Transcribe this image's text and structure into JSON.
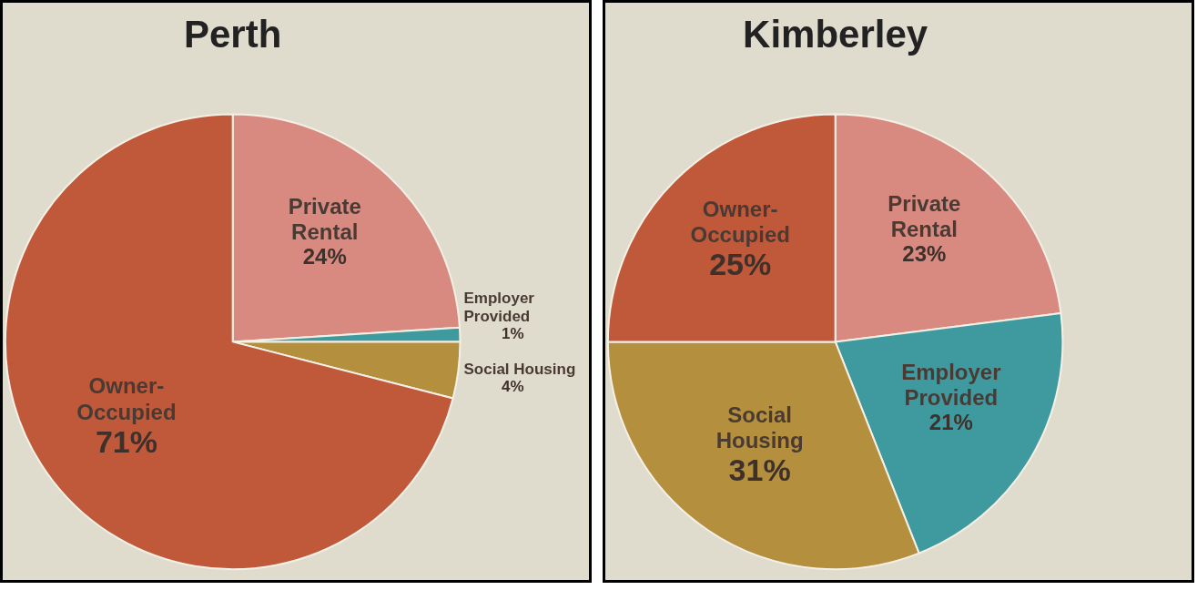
{
  "chart_data": [
    {
      "type": "pie",
      "title": "Perth",
      "categories": [
        "Private Rental",
        "Employer Provided",
        "Social Housing",
        "Owner-Occupied"
      ],
      "values": [
        24,
        1,
        4,
        71
      ],
      "value_labels": [
        "24%",
        "1%",
        "4%",
        "71%"
      ],
      "colors": [
        "#d98a80",
        "#3f9aa0",
        "#b48f3e",
        "#c0583a"
      ]
    },
    {
      "type": "pie",
      "title": "Kimberley",
      "categories": [
        "Private Rental",
        "Employer Provided",
        "Social Housing",
        "Owner-Occupied"
      ],
      "values": [
        23,
        21,
        31,
        25
      ],
      "value_labels": [
        "23%",
        "21%",
        "31%",
        "25%"
      ],
      "colors": [
        "#d98a80",
        "#3f9aa0",
        "#b48f3e",
        "#c0583a"
      ]
    }
  ]
}
